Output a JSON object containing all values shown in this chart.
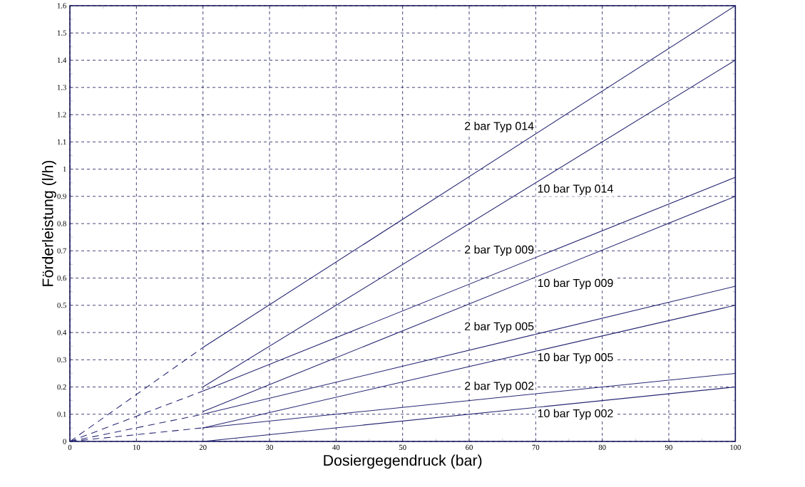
{
  "chart_data": {
    "type": "line",
    "xlabel": "Dosiergegendruck (bar)",
    "ylabel": "Förderleistung (l/h)",
    "xlim": [
      0,
      100
    ],
    "ylim": [
      0,
      1.6
    ],
    "xticks": [
      0,
      10,
      20,
      30,
      40,
      50,
      60,
      70,
      80,
      90,
      100
    ],
    "yticks": [
      0,
      0.1,
      0.2,
      0.3,
      0.4,
      0.5,
      0.6,
      0.7,
      0.8,
      0.9,
      1,
      1.1,
      1.2,
      1.3,
      1.4,
      1.5,
      1.6
    ],
    "grid": true,
    "legend": false,
    "marker": "none",
    "series": [
      {
        "name": "2 bar Typ 014",
        "color": "#262673",
        "x": [
          20,
          100
        ],
        "values": [
          0.345,
          1.6
        ],
        "line_style": "solid"
      },
      {
        "name": "10 bar Typ 014",
        "color": "#262673",
        "x": [
          20,
          100
        ],
        "values": [
          0.2,
          1.4
        ],
        "line_style": "solid"
      },
      {
        "name": "2 bar Typ 009",
        "color": "#262673",
        "x": [
          20,
          100
        ],
        "values": [
          0.185,
          0.97
        ],
        "line_style": "solid"
      },
      {
        "name": "10 bar Typ 009",
        "color": "#262673",
        "x": [
          20,
          100
        ],
        "values": [
          0.11,
          0.9
        ],
        "line_style": "solid"
      },
      {
        "name": "2 bar Typ 005",
        "color": "#262673",
        "x": [
          20,
          100
        ],
        "values": [
          0.1,
          0.57
        ],
        "line_style": "solid"
      },
      {
        "name": "10 bar Typ 005",
        "color": "#262673",
        "x": [
          20,
          100
        ],
        "values": [
          0.05,
          0.5
        ],
        "line_style": "solid"
      },
      {
        "name": "2 bar Typ 002",
        "color": "#262673",
        "x": [
          20,
          100
        ],
        "values": [
          0.05,
          0.25
        ],
        "line_style": "solid"
      },
      {
        "name": "10 bar Typ 002",
        "color": "#262673",
        "x": [
          20,
          100
        ],
        "values": [
          0,
          0.2
        ],
        "line_style": "solid"
      },
      {
        "color": "#262673",
        "x": [
          0,
          20
        ],
        "values": [
          0,
          0.345
        ],
        "line_style": "dashed"
      },
      {
        "color": "#262673",
        "x": [
          0,
          20
        ],
        "values": [
          0,
          0.185
        ],
        "line_style": "dashed"
      },
      {
        "color": "#262673",
        "x": [
          0,
          20
        ],
        "values": [
          0,
          0.1
        ],
        "line_style": "dashed"
      },
      {
        "color": "#262673",
        "x": [
          0,
          20
        ],
        "values": [
          0,
          0.05
        ],
        "line_style": "dashed"
      }
    ]
  }
}
